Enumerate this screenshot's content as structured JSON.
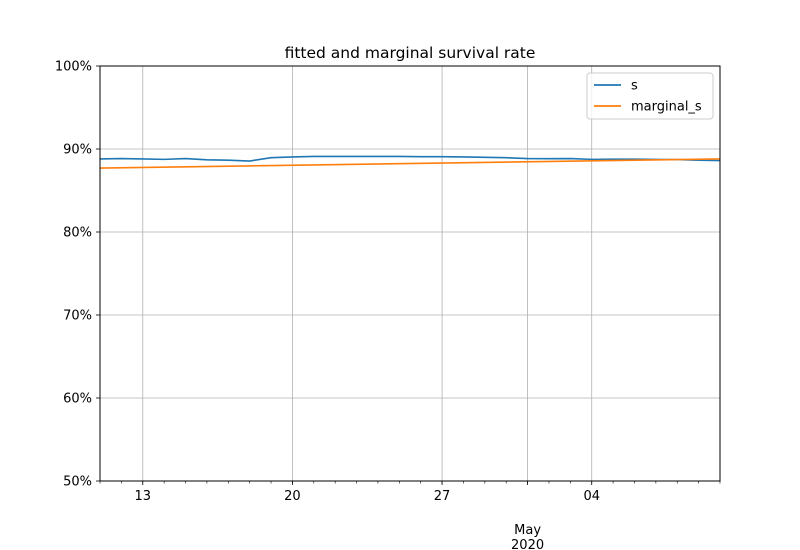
{
  "chart_data": {
    "type": "line",
    "title": "fitted and marginal survival rate",
    "xlabel": "",
    "ylabel": "",
    "y_format": "percent",
    "ylim": [
      50,
      100
    ],
    "yticks": [
      50,
      60,
      70,
      80,
      90,
      100
    ],
    "ytick_labels": [
      "50%",
      "60%",
      "70%",
      "80%",
      "90%",
      "100%"
    ],
    "xlim": [
      "2020-04-11",
      "2020-05-10"
    ],
    "xtick_major": [
      {
        "date": "2020-04-13",
        "label": "13"
      },
      {
        "date": "2020-04-20",
        "label": "20"
      },
      {
        "date": "2020-04-27",
        "label": "27"
      },
      {
        "date": "2020-05-01",
        "label": "May\n2020"
      },
      {
        "date": "2020-05-04",
        "label": "04"
      }
    ],
    "grid": true,
    "legend": {
      "placement": "top-right"
    },
    "series": [
      {
        "name": "s",
        "color": "#1f77b4",
        "x": [
          "2020-04-11",
          "2020-04-12",
          "2020-04-13",
          "2020-04-14",
          "2020-04-15",
          "2020-04-16",
          "2020-04-17",
          "2020-04-18",
          "2020-04-19",
          "2020-04-20",
          "2020-04-21",
          "2020-04-22",
          "2020-04-23",
          "2020-04-24",
          "2020-04-25",
          "2020-04-26",
          "2020-04-27",
          "2020-04-28",
          "2020-04-29",
          "2020-04-30",
          "2020-05-01",
          "2020-05-02",
          "2020-05-03",
          "2020-05-04",
          "2020-05-05",
          "2020-05-06",
          "2020-05-07",
          "2020-05-08",
          "2020-05-09",
          "2020-05-10"
        ],
        "values": [
          88.8,
          88.85,
          88.8,
          88.75,
          88.85,
          88.7,
          88.65,
          88.55,
          88.95,
          89.05,
          89.1,
          89.1,
          89.1,
          89.1,
          89.1,
          89.08,
          89.07,
          89.05,
          89.0,
          88.95,
          88.85,
          88.83,
          88.85,
          88.75,
          88.77,
          88.77,
          88.75,
          88.72,
          88.65,
          88.6
        ]
      },
      {
        "name": "marginal_s",
        "color": "#ff7f0e",
        "x": [
          "2020-04-11",
          "2020-05-10"
        ],
        "values": [
          87.7,
          88.8
        ]
      }
    ]
  }
}
